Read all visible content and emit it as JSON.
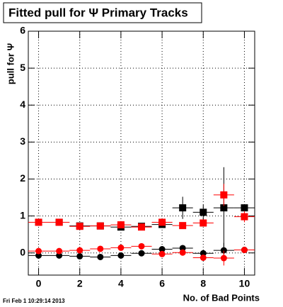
{
  "chart_data": {
    "type": "errorbar",
    "title": "Fitted pull for Ψ  Primary Tracks",
    "x_label": "No. of Bad Points",
    "y_label": "pull for Ψ",
    "footer": "Fri Feb  1 10:29:14 2013",
    "x": [
      0,
      1,
      2,
      3,
      4,
      5,
      6,
      7,
      8,
      9,
      10
    ],
    "xerr": 0.5,
    "xlim": [
      -0.5,
      10.5
    ],
    "xticks": [
      0,
      2,
      4,
      6,
      8,
      10
    ],
    "ylim": [
      -0.6,
      6
    ],
    "yticks": [
      0,
      1,
      2,
      3,
      4,
      5,
      6
    ],
    "grid": true,
    "series": [
      {
        "color": "#000000",
        "marker": "square",
        "values": [
          0.83,
          0.83,
          0.73,
          0.73,
          0.7,
          0.72,
          0.77,
          1.22,
          1.1,
          1.22,
          1.22
        ],
        "errors": [
          0.02,
          0.02,
          0.02,
          0.02,
          0.03,
          0.03,
          0.05,
          0.3,
          0.2,
          1.1,
          0.1
        ]
      },
      {
        "color": "#ff0000",
        "marker": "square",
        "values": [
          0.83,
          0.83,
          0.72,
          0.73,
          0.76,
          0.7,
          0.83,
          0.74,
          0.81,
          1.57,
          0.98
        ],
        "errors": [
          0.02,
          0.02,
          0.02,
          0.02,
          0.03,
          0.03,
          0.05,
          0.05,
          0.08,
          0.3,
          0.15
        ]
      },
      {
        "color": "#000000",
        "marker": "circle",
        "values": [
          -0.07,
          -0.07,
          -0.09,
          -0.11,
          -0.07,
          -0.01,
          0.1,
          0.13,
          -0.01,
          0.07,
          0.08
        ],
        "errors": [
          0.02,
          0.02,
          0.02,
          0.02,
          0.03,
          0.03,
          0.05,
          0.08,
          0.08,
          0.2,
          0.05
        ]
      },
      {
        "color": "#ff0000",
        "marker": "circle",
        "values": [
          0.05,
          0.05,
          0.07,
          0.11,
          0.14,
          0.18,
          -0.03,
          0.01,
          -0.13,
          -0.14,
          0.08
        ],
        "errors": [
          0.02,
          0.02,
          0.02,
          0.02,
          0.03,
          0.03,
          0.05,
          0.05,
          0.08,
          0.2,
          0.05
        ]
      }
    ]
  }
}
